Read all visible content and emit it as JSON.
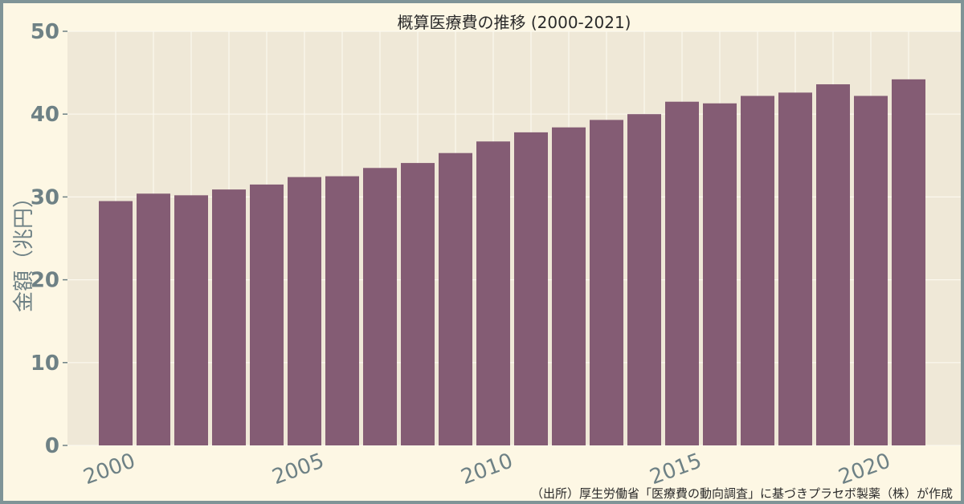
{
  "chart_data": {
    "type": "bar",
    "title": "概算医療費の推移 (2000-2021)",
    "xlabel": "",
    "ylabel": "金額（兆円）",
    "x": [
      2000,
      2001,
      2002,
      2003,
      2004,
      2005,
      2006,
      2007,
      2008,
      2009,
      2010,
      2011,
      2012,
      2013,
      2014,
      2015,
      2016,
      2017,
      2018,
      2019,
      2020,
      2021
    ],
    "values": [
      29.5,
      30.4,
      30.2,
      30.9,
      31.5,
      32.4,
      32.5,
      33.5,
      34.1,
      35.3,
      36.7,
      37.8,
      38.4,
      39.3,
      40.0,
      41.5,
      41.3,
      42.2,
      42.6,
      43.6,
      42.2,
      44.2
    ],
    "x_ticks": [
      "2000",
      "2005",
      "2010",
      "2015",
      "2020"
    ],
    "y_ticks": [
      "0",
      "10",
      "20",
      "30",
      "40",
      "50"
    ],
    "ylim": [
      0,
      50
    ],
    "grid": true,
    "legend": "none",
    "source": "（出所）厚生労働省「医療費の動向調査」に基づきプラセボ製薬（株）が作成",
    "colors": {
      "bar": "#845c74",
      "plot_bg": "#efe8d7",
      "page_bg": "#fdf7e4",
      "border": "#7f9497",
      "grid": "#fbf8ee",
      "tick_text": "#6e8185"
    }
  }
}
